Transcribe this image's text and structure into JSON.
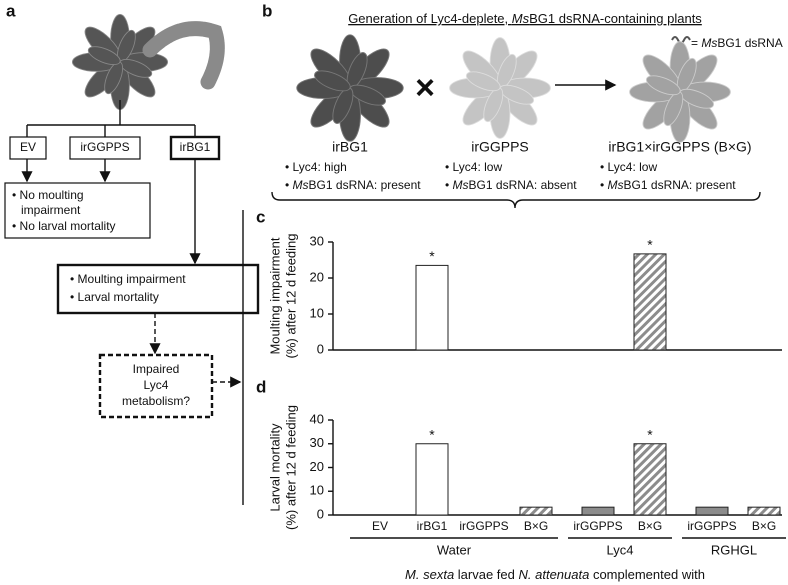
{
  "panel_a": {
    "label": "a",
    "treatments": [
      "EV",
      "irGGPPS",
      "irBG1"
    ],
    "outcome_none": [
      "• No moulting",
      "impairment",
      "• No larval mortality"
    ],
    "outcome_effect": [
      "• Moulting impairment",
      "• Larval mortality"
    ],
    "hypothesis": [
      "Impaired",
      "Lyc4",
      "metabolism?"
    ]
  },
  "panel_b": {
    "label": "b",
    "title": [
      "Generation of Lyc4-deplete, ",
      "Ms",
      "BG1 dsRNA-containing plants"
    ],
    "cross": "×",
    "legend": [
      "= ",
      "Ms",
      "BG1 dsRNA"
    ],
    "plants": [
      {
        "name": "irBG1",
        "lyc4": "• Lyc4: high",
        "dsrna": [
          "• ",
          "Ms",
          "BG1 dsRNA: present"
        ]
      },
      {
        "name": "irGGPPS",
        "lyc4": "• Lyc4: low",
        "dsrna": [
          "• ",
          "Ms",
          "BG1 dsRNA: absent"
        ]
      },
      {
        "name": "irBG1×irGGPPS (B×G)",
        "lyc4": "• Lyc4: low",
        "dsrna": [
          "• ",
          "Ms",
          "BG1 dsRNA: present"
        ]
      }
    ]
  },
  "chart_data": [
    {
      "type": "bar",
      "label": "c",
      "ylabel": [
        "Moulting impairment",
        "(%) after 12 d feeding"
      ],
      "categories": [
        null,
        null,
        null,
        null,
        null,
        null,
        null,
        null
      ],
      "values": [
        0,
        23.5,
        0,
        0,
        0,
        26.7,
        0,
        0
      ],
      "colors": [
        "#ffffff",
        "#ffffff",
        "#8c8c8c",
        "#8c8c8c",
        "#8c8c8c",
        "#8c8c8c",
        "#8c8c8c",
        "#8c8c8c"
      ],
      "hatched": [
        false,
        false,
        false,
        true,
        false,
        true,
        false,
        true
      ],
      "ylim": [
        0,
        30
      ],
      "yticks": [
        0,
        10,
        20,
        30
      ],
      "annotations": [
        {
          "index": 1,
          "text": "*"
        },
        {
          "index": 5,
          "text": "*"
        }
      ]
    },
    {
      "type": "bar",
      "label": "d",
      "ylabel": [
        "Larval mortality",
        "(%) after 12 d feeding"
      ],
      "categories": [
        "EV",
        "irBG1",
        "irGGPPS",
        "B×G",
        "irGGPPS",
        "B×G",
        "irGGPPS",
        "B×G"
      ],
      "values": [
        0,
        30,
        0,
        3.3,
        3.3,
        30,
        3.3,
        3.3
      ],
      "colors": [
        "#ffffff",
        "#ffffff",
        "#8c8c8c",
        "#8c8c8c",
        "#8c8c8c",
        "#8c8c8c",
        "#8c8c8c",
        "#8c8c8c"
      ],
      "hatched": [
        false,
        false,
        false,
        true,
        false,
        true,
        false,
        true
      ],
      "ylim": [
        0,
        40
      ],
      "yticks": [
        0,
        10,
        20,
        30,
        40
      ],
      "annotations": [
        {
          "index": 1,
          "text": "*"
        },
        {
          "index": 5,
          "text": "*"
        }
      ],
      "groups": [
        {
          "name": "Water",
          "count": 4
        },
        {
          "name": "Lyc4",
          "count": 2
        },
        {
          "name": "RGHGL",
          "count": 2
        }
      ],
      "xlabel": [
        "M. sexta",
        " larvae fed ",
        "N. attenuata",
        " complemented with"
      ]
    }
  ]
}
